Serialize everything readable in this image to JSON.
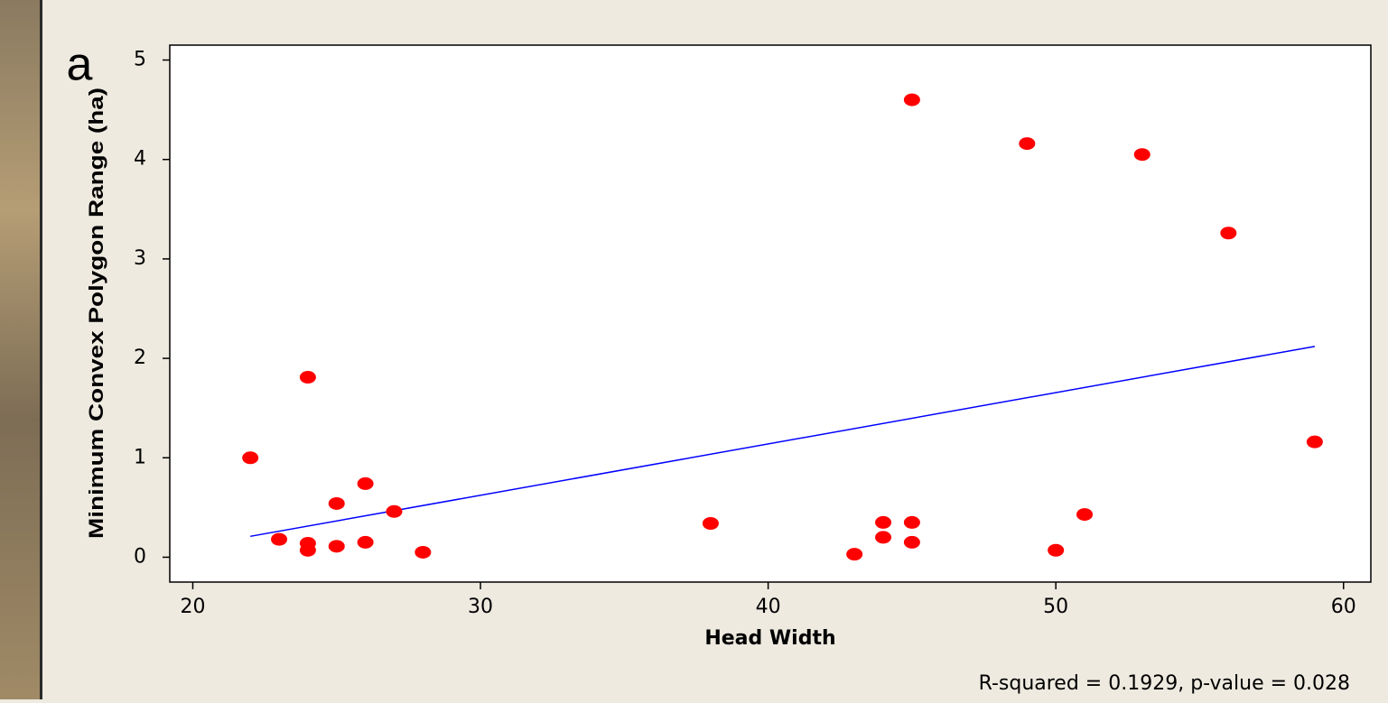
{
  "chart_data": {
    "type": "scatter",
    "panel_label": "a",
    "xlabel": "Head Width",
    "ylabel": "Minimum Convex Polygon Range (ha)",
    "annotation": "R-squared = 0.1929, p-value = 0.028",
    "xlim": [
      19.2,
      60.95
    ],
    "ylim": [
      -0.25,
      5.15
    ],
    "xticks": [
      20,
      30,
      40,
      50,
      60
    ],
    "yticks": [
      0,
      1,
      2,
      3,
      4,
      5
    ],
    "series": [
      {
        "color": "#ff0000",
        "x": [
          22,
          23,
          24,
          24,
          24,
          25,
          25,
          26,
          26,
          27,
          28,
          38,
          43,
          44,
          44,
          45,
          45,
          45,
          49,
          50,
          51,
          53,
          56,
          59
        ],
        "values": [
          1.0,
          0.18,
          1.81,
          0.14,
          0.07,
          0.54,
          0.11,
          0.74,
          0.15,
          0.46,
          0.05,
          0.34,
          0.03,
          0.35,
          0.2,
          4.6,
          0.35,
          0.15,
          4.16,
          0.07,
          0.43,
          4.05,
          3.26,
          1.16
        ]
      }
    ],
    "trendline": {
      "color": "#0000ff",
      "x": [
        22,
        59
      ],
      "values": [
        0.21,
        2.12
      ]
    }
  }
}
